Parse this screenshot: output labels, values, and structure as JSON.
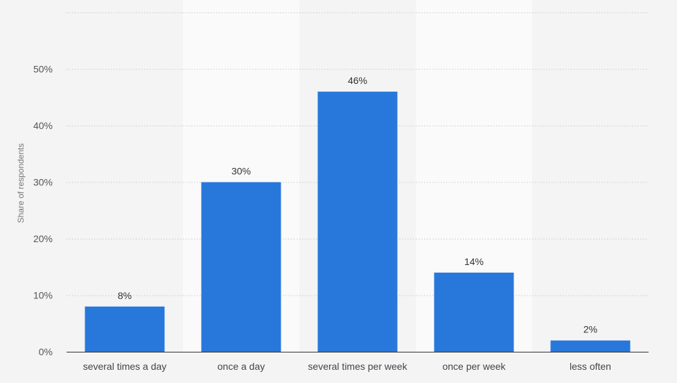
{
  "chart_data": {
    "type": "bar",
    "categories": [
      "several times a day",
      "once a day",
      "several times per week",
      "once per week",
      "less often"
    ],
    "values": [
      8,
      30,
      46,
      14,
      2
    ],
    "data_labels": [
      "8%",
      "30%",
      "46%",
      "14%",
      "2%"
    ],
    "title": "",
    "xlabel": "",
    "ylabel": "Share of respondents",
    "ylim": [
      0,
      60
    ],
    "yticks": [
      0,
      10,
      20,
      30,
      40,
      50
    ],
    "ytick_labels": [
      "0%",
      "10%",
      "20%",
      "30%",
      "40%",
      "50%"
    ],
    "grid": true,
    "legend": "none"
  },
  "colors": {
    "bar": "#2878dc",
    "background": "#f4f4f4",
    "band": "#fafafa"
  }
}
